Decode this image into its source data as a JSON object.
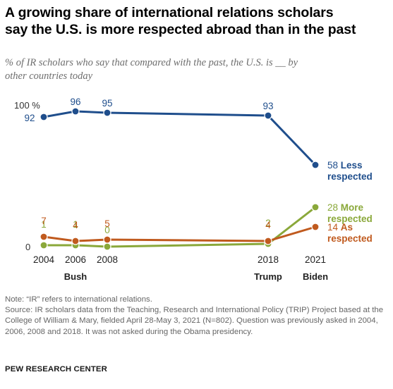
{
  "header": {
    "title": "A growing share of international relations scholars\nsay the U.S. is more respected abroad than in the past",
    "subtitle": "% of IR scholars who say that compared with the past, the U.S. is __ by\nother countries today"
  },
  "footer": {
    "note": "Note: “IR” refers to international relations.",
    "source": "Source: IR scholars data from the Teaching, Research and International Policy (TRIP) Project based at the College of William & Mary, fielded April 28-May 3, 2021 (N=802). Question was previously asked in 2004, 2006, 2008 and 2018. It was not asked during the Obama presidency.",
    "brand": "PEW RESEARCH CENTER"
  },
  "chart_data": {
    "type": "line",
    "x": [
      "2004",
      "2006",
      "2008",
      "2018",
      "2021"
    ],
    "president_labels": [
      {
        "label": "Bush",
        "under": "2006"
      },
      {
        "label": "Trump",
        "under": "2018"
      },
      {
        "label": "Biden",
        "under": "2021"
      }
    ],
    "y_axis_labels": {
      "top": "100 %",
      "bottom": "0"
    },
    "ylim": [
      0,
      100
    ],
    "grid": false,
    "series": [
      {
        "name": "Less respected",
        "end_label_value": "58",
        "end_label_lines": [
          "Less",
          "respected"
        ],
        "color": "#1f4e8c",
        "values": [
          92,
          96,
          95,
          93,
          58
        ],
        "data_labels": [
          "92",
          "96",
          "95",
          "93",
          ""
        ]
      },
      {
        "name": "More respected",
        "end_label_value": "28",
        "end_label_lines": [
          "More",
          "respected"
        ],
        "color": "#8aa83a",
        "values": [
          1,
          1,
          0,
          2,
          28
        ],
        "data_labels": [
          "1",
          "1",
          "0",
          "2",
          ""
        ]
      },
      {
        "name": "As respected",
        "end_label_value": "14",
        "end_label_lines": [
          "As",
          "respected"
        ],
        "color": "#c05a1e",
        "values": [
          7,
          4,
          5,
          4,
          14
        ],
        "data_labels": [
          "7",
          "4",
          "5",
          "4",
          ""
        ]
      }
    ]
  }
}
